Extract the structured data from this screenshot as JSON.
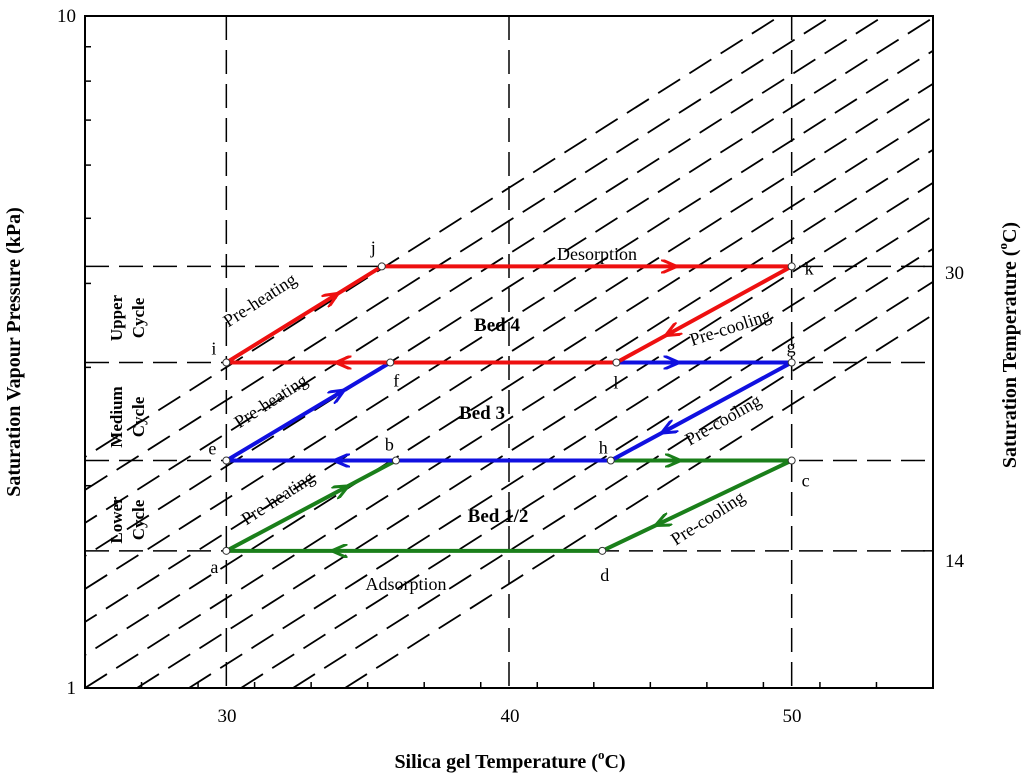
{
  "chart_data": {
    "type": "line",
    "xlabel_main": "Silica gel Temperature (",
    "xlabel_sup": "o",
    "xlabel_end": "C)",
    "ylabel": "Saturation Vapour Pressure (kPa)",
    "y2label_main": "Saturation Temperature (",
    "y2label_sup": "o",
    "y2label_end": "C)",
    "xlim": [
      25,
      55
    ],
    "ylim": [
      1,
      10
    ],
    "yscale": "log",
    "x_ticks": [
      30,
      40,
      50
    ],
    "y_ticks": [
      1,
      10
    ],
    "y2_ticks": [
      {
        "label": "30",
        "pressure": 4.24
      },
      {
        "label": "14",
        "pressure": 1.6
      }
    ],
    "pressure_levels": [
      1.6,
      2.18,
      3.05,
      4.24
    ],
    "points": {
      "a": {
        "x": 30.0,
        "p": 1.6
      },
      "b": {
        "x": 36.0,
        "p": 2.18
      },
      "c": {
        "x": 50.0,
        "p": 2.18
      },
      "d": {
        "x": 43.3,
        "p": 1.6
      },
      "e": {
        "x": 30.0,
        "p": 2.18
      },
      "f": {
        "x": 35.8,
        "p": 3.05
      },
      "g": {
        "x": 50.0,
        "p": 3.05
      },
      "h": {
        "x": 43.6,
        "p": 2.18
      },
      "i": {
        "x": 30.0,
        "p": 3.05
      },
      "j": {
        "x": 35.5,
        "p": 4.24
      },
      "k": {
        "x": 50.0,
        "p": 4.24
      },
      "l": {
        "x": 43.8,
        "p": 3.05
      }
    },
    "series": [
      {
        "color": "#1a7f1a",
        "segments": [
          [
            "a",
            "b"
          ],
          [
            "b",
            "c"
          ],
          [
            "c",
            "d"
          ],
          [
            "d",
            "a"
          ]
        ]
      },
      {
        "color": "#1010e0",
        "segments": [
          [
            "e",
            "f"
          ],
          [
            "f",
            "g"
          ],
          [
            "g",
            "h"
          ],
          [
            "h",
            "e"
          ]
        ]
      },
      {
        "color": "#ee1010",
        "segments": [
          [
            "i",
            "j"
          ],
          [
            "j",
            "k"
          ],
          [
            "k",
            "l"
          ],
          [
            "l",
            "i"
          ]
        ]
      }
    ],
    "annotations": {
      "desorption": "Desorption",
      "adsorption": "Adsorption",
      "preheat_upper": "Pre-heating",
      "preheat_medium": "Pre-heating",
      "preheat_lower": "Pre-heating",
      "precool_upper": "Pre-cooling",
      "precool_medium": "Pre-cooling",
      "precool_lower": "Pre-cooling",
      "bed4": "Bed 4",
      "bed3": "Bed 3",
      "bed12": "Bed 1/2",
      "upper_cycle_1": "Upper",
      "upper_cycle_2": "Cycle",
      "medium_cycle_1": "Medium",
      "medium_cycle_2": "Cycle",
      "lower_cycle_1": "Lower",
      "lower_cycle_2": "Cycle"
    },
    "grid": "dashed",
    "legend": "none"
  }
}
